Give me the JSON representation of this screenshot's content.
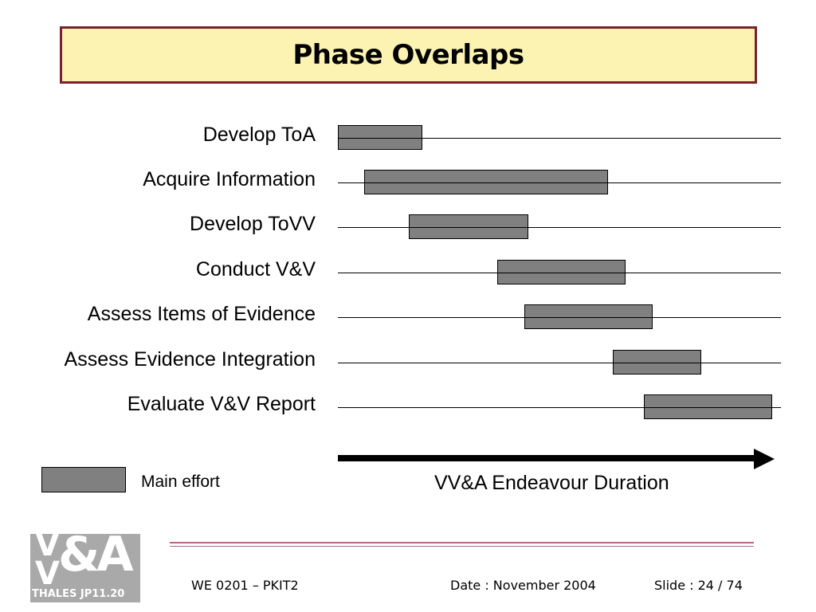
{
  "title": "Phase Overlaps",
  "tasks": [
    {
      "label": "Develop ToA",
      "start": 0.0,
      "end": 0.19
    },
    {
      "label": "Acquire Information",
      "start": 0.06,
      "end": 0.61
    },
    {
      "label": "Develop ToVV",
      "start": 0.16,
      "end": 0.43
    },
    {
      "label": "Conduct V&V",
      "start": 0.36,
      "end": 0.65
    },
    {
      "label": "Assess Items of Evidence",
      "start": 0.42,
      "end": 0.71
    },
    {
      "label": "Assess Evidence Integration",
      "start": 0.62,
      "end": 0.82
    },
    {
      "label": "Evaluate V&V Report",
      "start": 0.69,
      "end": 0.98
    }
  ],
  "axis": {
    "label": "VV&A Endeavour Duration"
  },
  "legend": {
    "label": "Main effort",
    "color": "#808080"
  },
  "logo": {
    "big": "V&A",
    "small": "THALES JP11.20"
  },
  "footer": {
    "left": "WE 0201 – PKIT2",
    "date": "Date : November 2004",
    "slide": "Slide : 24 / 74"
  },
  "colors": {
    "title_bg": "#fcf3b3",
    "title_border": "#7a1f2b",
    "bar": "#808080"
  }
}
